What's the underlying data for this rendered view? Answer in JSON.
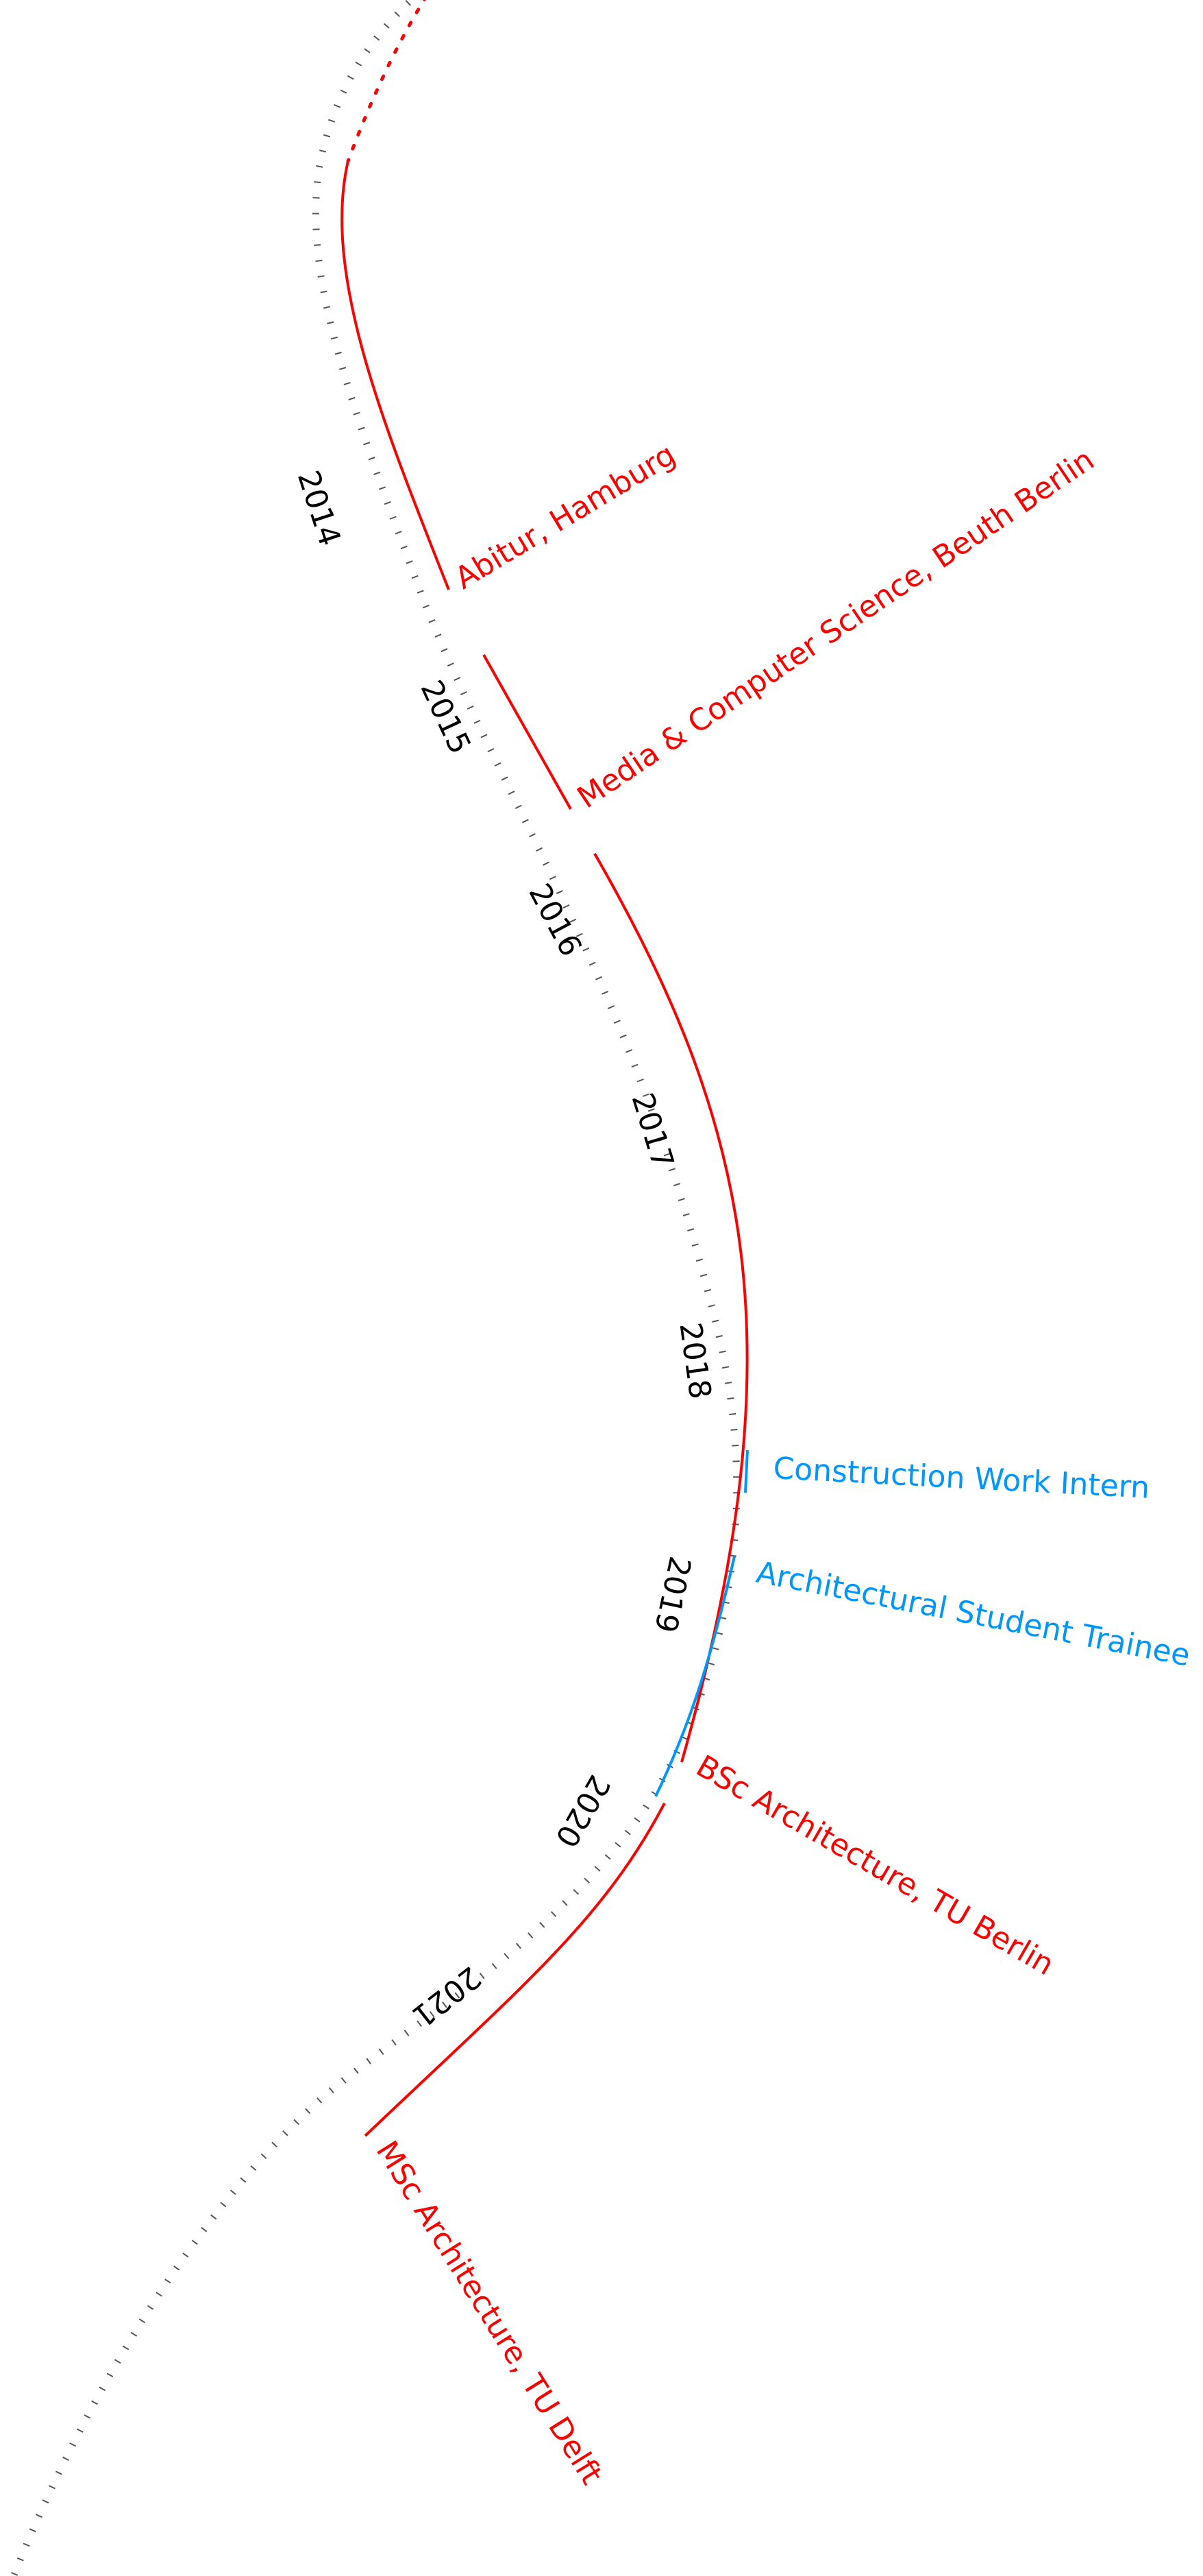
{
  "colors": {
    "education": "#ff0000",
    "work": "#0096ff",
    "years": "#000000",
    "ticks": "#555555"
  },
  "years": [
    "2014",
    "2015",
    "2016",
    "2017",
    "2018",
    "2019",
    "2020",
    "2021"
  ],
  "entries": {
    "abitur": {
      "label": "Abitur, Hamburg",
      "category": "education"
    },
    "media": {
      "label": "Media & Computer Science, Beuth Berlin",
      "category": "education"
    },
    "bsc": {
      "label": "BSc Architecture, TU Berlin",
      "category": "education"
    },
    "construction": {
      "label": "Construction Work Intern",
      "category": "work"
    },
    "trainee": {
      "label": "Architectural Student Trainee",
      "category": "work"
    },
    "msc": {
      "label": "MSc Architecture, TU Delft",
      "category": "education"
    }
  }
}
